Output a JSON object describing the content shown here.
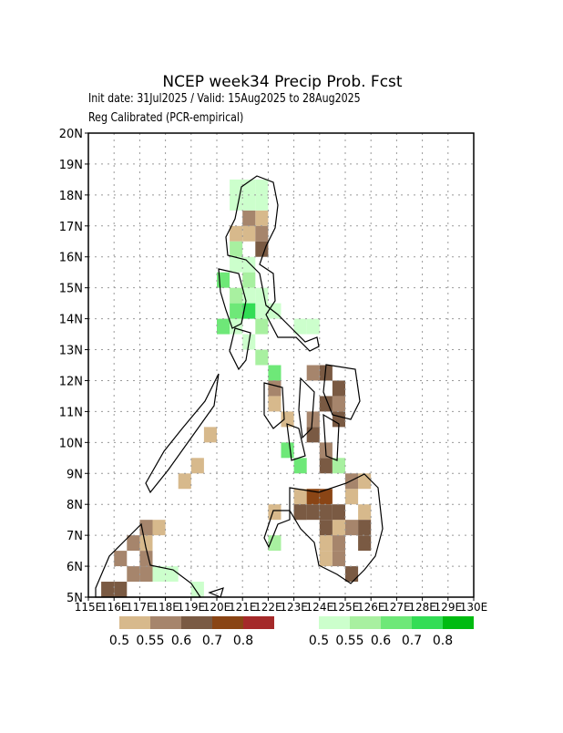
{
  "map": {
    "title": "NCEP week34 Precip Prob. Fcst",
    "subtitle": "Init date: 31Jul2025 / Valid: 15Aug2025 to 28Aug2025",
    "method": "Reg Calibrated (PCR-empirical)",
    "xlim": [
      115,
      130
    ],
    "ylim": [
      5,
      20
    ],
    "xticks": [
      {
        "value": 115,
        "label": "115E"
      },
      {
        "value": 116,
        "label": "116E"
      },
      {
        "value": 117,
        "label": "117E"
      },
      {
        "value": 118,
        "label": "118E"
      },
      {
        "value": 119,
        "label": "119E"
      },
      {
        "value": 120,
        "label": "120E"
      },
      {
        "value": 121,
        "label": "121E"
      },
      {
        "value": 122,
        "label": "122E"
      },
      {
        "value": 123,
        "label": "123E"
      },
      {
        "value": 124,
        "label": "124E"
      },
      {
        "value": 125,
        "label": "125E"
      },
      {
        "value": 126,
        "label": "126E"
      },
      {
        "value": 127,
        "label": "127E"
      },
      {
        "value": 128,
        "label": "128E"
      },
      {
        "value": 129,
        "label": "129E"
      },
      {
        "value": 130,
        "label": "130E"
      }
    ],
    "yticks": [
      {
        "value": 5,
        "label": "5N"
      },
      {
        "value": 6,
        "label": "6N"
      },
      {
        "value": 7,
        "label": "7N"
      },
      {
        "value": 8,
        "label": "8N"
      },
      {
        "value": 9,
        "label": "9N"
      },
      {
        "value": 10,
        "label": "10N"
      },
      {
        "value": 11,
        "label": "11N"
      },
      {
        "value": 12,
        "label": "12N"
      },
      {
        "value": 13,
        "label": "13N"
      },
      {
        "value": 14,
        "label": "14N"
      },
      {
        "value": 15,
        "label": "15N"
      },
      {
        "value": 16,
        "label": "16N"
      },
      {
        "value": 17,
        "label": "17N"
      },
      {
        "value": 18,
        "label": "18N"
      },
      {
        "value": 19,
        "label": "19N"
      },
      {
        "value": 20,
        "label": "20N"
      }
    ],
    "grid": true,
    "cell_size": 0.5,
    "below_colors": [
      "#d7b98c",
      "#a6856c",
      "#7a5a43",
      "#8a4515",
      "#a52a2a"
    ],
    "below_labels": [
      0.5,
      0.55,
      0.6,
      0.7,
      0.8
    ],
    "above_colors": [
      "#ccffcc",
      "#a8f0a0",
      "#6ee878",
      "#33dd55",
      "#00bb11"
    ],
    "above_labels": [
      0.5,
      0.55,
      0.6,
      0.7,
      0.8
    ],
    "below": [
      [
        120.5,
        16.5,
        0
      ],
      [
        121,
        16.5,
        0
      ],
      [
        121.5,
        17,
        0
      ],
      [
        122,
        11,
        0
      ],
      [
        122.5,
        10.5,
        0
      ],
      [
        122,
        7.5,
        0
      ],
      [
        123,
        8,
        0
      ],
      [
        123.5,
        8,
        0
      ],
      [
        124.5,
        7,
        0
      ],
      [
        125,
        8,
        0
      ],
      [
        125.5,
        7.5,
        0
      ],
      [
        125.5,
        8.5,
        0
      ],
      [
        124,
        6.5,
        0
      ],
      [
        124,
        6,
        0
      ],
      [
        119.5,
        10,
        0
      ],
      [
        119,
        9,
        0
      ],
      [
        118.5,
        8.5,
        0
      ],
      [
        117.5,
        7,
        0
      ],
      [
        117,
        6.5,
        0
      ],
      [
        121,
        17,
        1
      ],
      [
        121.5,
        16.5,
        1
      ],
      [
        122,
        11.5,
        1
      ],
      [
        123.5,
        12,
        1
      ],
      [
        124.5,
        11,
        1
      ],
      [
        123,
        7.5,
        1
      ],
      [
        124.5,
        6.5,
        1
      ],
      [
        124.5,
        6,
        1
      ],
      [
        125,
        7,
        1
      ],
      [
        117,
        6,
        1
      ],
      [
        116.5,
        6.5,
        1
      ],
      [
        117,
        7,
        1
      ],
      [
        116.5,
        5.5,
        1
      ],
      [
        116,
        6,
        1
      ],
      [
        117,
        5.5,
        1
      ],
      [
        125,
        8.5,
        1
      ],
      [
        124,
        9.5,
        1
      ],
      [
        123.5,
        10.5,
        1
      ],
      [
        121.5,
        16,
        2
      ],
      [
        124,
        12,
        2
      ],
      [
        124.5,
        11.5,
        2
      ],
      [
        124,
        11,
        2
      ],
      [
        124.5,
        10.5,
        2
      ],
      [
        123.5,
        10,
        2
      ],
      [
        123,
        7.5,
        2
      ],
      [
        123.5,
        7.5,
        2
      ],
      [
        124,
        7.5,
        2
      ],
      [
        124.5,
        7.5,
        2
      ],
      [
        124,
        7,
        2
      ],
      [
        125.5,
        6.5,
        2
      ],
      [
        125.5,
        7,
        2
      ],
      [
        125,
        5.5,
        2
      ],
      [
        116,
        5,
        2
      ],
      [
        115.5,
        5,
        2
      ],
      [
        124,
        9,
        2
      ],
      [
        123.5,
        8,
        3
      ],
      [
        124,
        8,
        3
      ]
    ],
    "above": [
      [
        120.5,
        18,
        0
      ],
      [
        121,
        18,
        0
      ],
      [
        121.5,
        18,
        0
      ],
      [
        120.5,
        17.5,
        0
      ],
      [
        121,
        17.5,
        0
      ],
      [
        121.5,
        17.5,
        0
      ],
      [
        120.5,
        15.5,
        0
      ],
      [
        121,
        15.5,
        0
      ],
      [
        121,
        14.5,
        0
      ],
      [
        121.5,
        14.5,
        0
      ],
      [
        121.5,
        14,
        0
      ],
      [
        120.5,
        13.5,
        0
      ],
      [
        121,
        13,
        0
      ],
      [
        122,
        14,
        0
      ],
      [
        123,
        13.5,
        0
      ],
      [
        123.5,
        13.5,
        0
      ],
      [
        117.5,
        5.5,
        0
      ],
      [
        118,
        5.5,
        0
      ],
      [
        119,
        5,
        0
      ],
      [
        120.5,
        16,
        1
      ],
      [
        120.5,
        14.5,
        1
      ],
      [
        121,
        15,
        1
      ],
      [
        121.5,
        13.5,
        1
      ],
      [
        124.5,
        9,
        1
      ],
      [
        121.5,
        12.5,
        1
      ],
      [
        122,
        6.5,
        1
      ],
      [
        120,
        15,
        2
      ],
      [
        120.5,
        14,
        2
      ],
      [
        120,
        13.5,
        2
      ],
      [
        122,
        12,
        2
      ],
      [
        122.5,
        9.5,
        2
      ],
      [
        123,
        9,
        2
      ],
      [
        121,
        14,
        3
      ]
    ]
  }
}
